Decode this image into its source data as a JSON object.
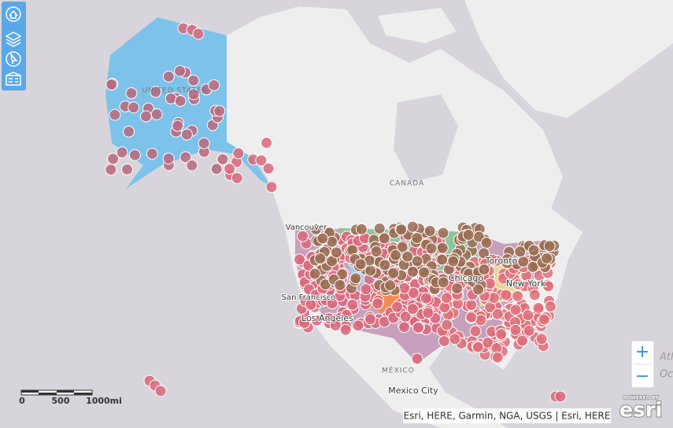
{
  "map": {
    "labels": [
      "UNITED STATES",
      "CANADA",
      "Vancouver",
      "Toronto",
      "Chicago",
      "New York",
      "San Francisco",
      "Los Angeles",
      "MÉXICO",
      "Mexico City",
      "Atl",
      "Oc"
    ],
    "scale": [
      "0",
      "500",
      "1000mi"
    ],
    "attribution": "Esri, HERE, Garmin, NGA, USGS | Esri, HERE",
    "logo": {
      "powered_by": "POWERED BY",
      "brand": "esri"
    },
    "zoom": {
      "in": "+",
      "out": "−"
    }
  }
}
